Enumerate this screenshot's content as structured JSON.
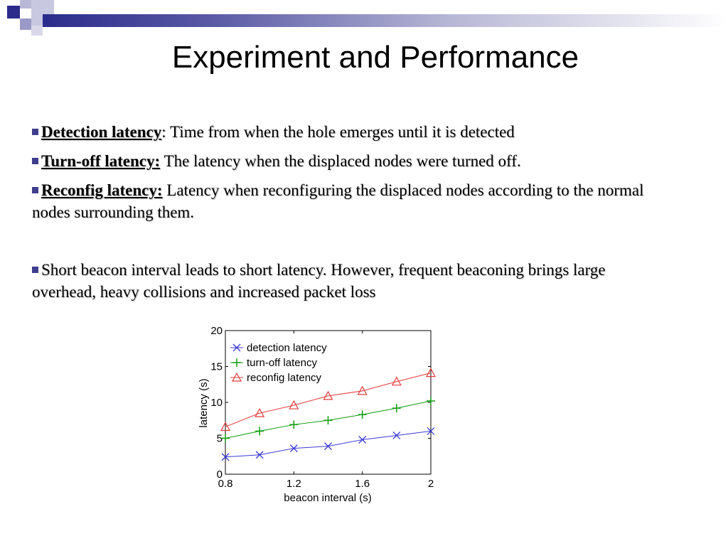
{
  "colors": {
    "accent": "#3e3e8c",
    "detection": "#3b3bd6",
    "turnoff": "#109a10",
    "reconfig": "#e23b3b"
  },
  "slide": {
    "title": "Experiment and Performance",
    "bullets": [
      {
        "head": "Detection latency",
        "sep": ": ",
        "text": "Time from when the hole emerges until it is detected"
      },
      {
        "head": "Turn-off latency:",
        "sep": " ",
        "text": "The latency when the displaced nodes were turned off."
      },
      {
        "head": "Reconfig latency:",
        "sep": " ",
        "text": "Latency when reconfiguring the displaced nodes according to the normal nodes surrounding them."
      },
      {
        "head": "",
        "sep": "",
        "text": "Short beacon interval leads to short latency. However, frequent beaconing brings large overhead, heavy collisions and increased packet loss"
      }
    ]
  },
  "chart_data": {
    "type": "line",
    "title": "",
    "xlabel": "beacon interval (s)",
    "ylabel": "latency (s)",
    "xlim": [
      0.8,
      2
    ],
    "ylim": [
      0,
      20
    ],
    "xticks": [
      "0.8",
      "1.2",
      "1.6",
      "2"
    ],
    "yticks": [
      "0",
      "5",
      "10",
      "15",
      "20"
    ],
    "grid": false,
    "legend": "top-left",
    "x": [
      0.8,
      1.0,
      1.2,
      1.4,
      1.6,
      1.8,
      2.0
    ],
    "series": [
      {
        "name": "detection latency",
        "marker": "x",
        "values": [
          2.4,
          2.7,
          3.6,
          3.9,
          4.8,
          5.4,
          6.0
        ]
      },
      {
        "name": "turn-off latency",
        "marker": "+",
        "values": [
          5.0,
          6.0,
          6.9,
          7.5,
          8.3,
          9.2,
          10.2
        ]
      },
      {
        "name": "reconfig latency",
        "marker": "triangle",
        "values": [
          6.6,
          8.5,
          9.6,
          10.9,
          11.6,
          12.9,
          14.1
        ]
      }
    ]
  }
}
